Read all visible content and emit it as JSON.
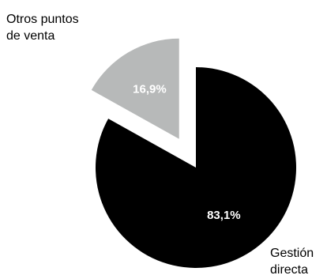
{
  "chart_data": {
    "type": "pie",
    "slices": [
      {
        "name_lines": [
          "Gestión",
          "directa"
        ],
        "value": 83.1,
        "label": "83,1%",
        "color": "#000000",
        "exploded": false
      },
      {
        "name_lines": [
          "Otros puntos",
          "de venta"
        ],
        "value": 16.9,
        "label": "16,9%",
        "color": "#b7b9b9",
        "exploded": true
      }
    ]
  }
}
